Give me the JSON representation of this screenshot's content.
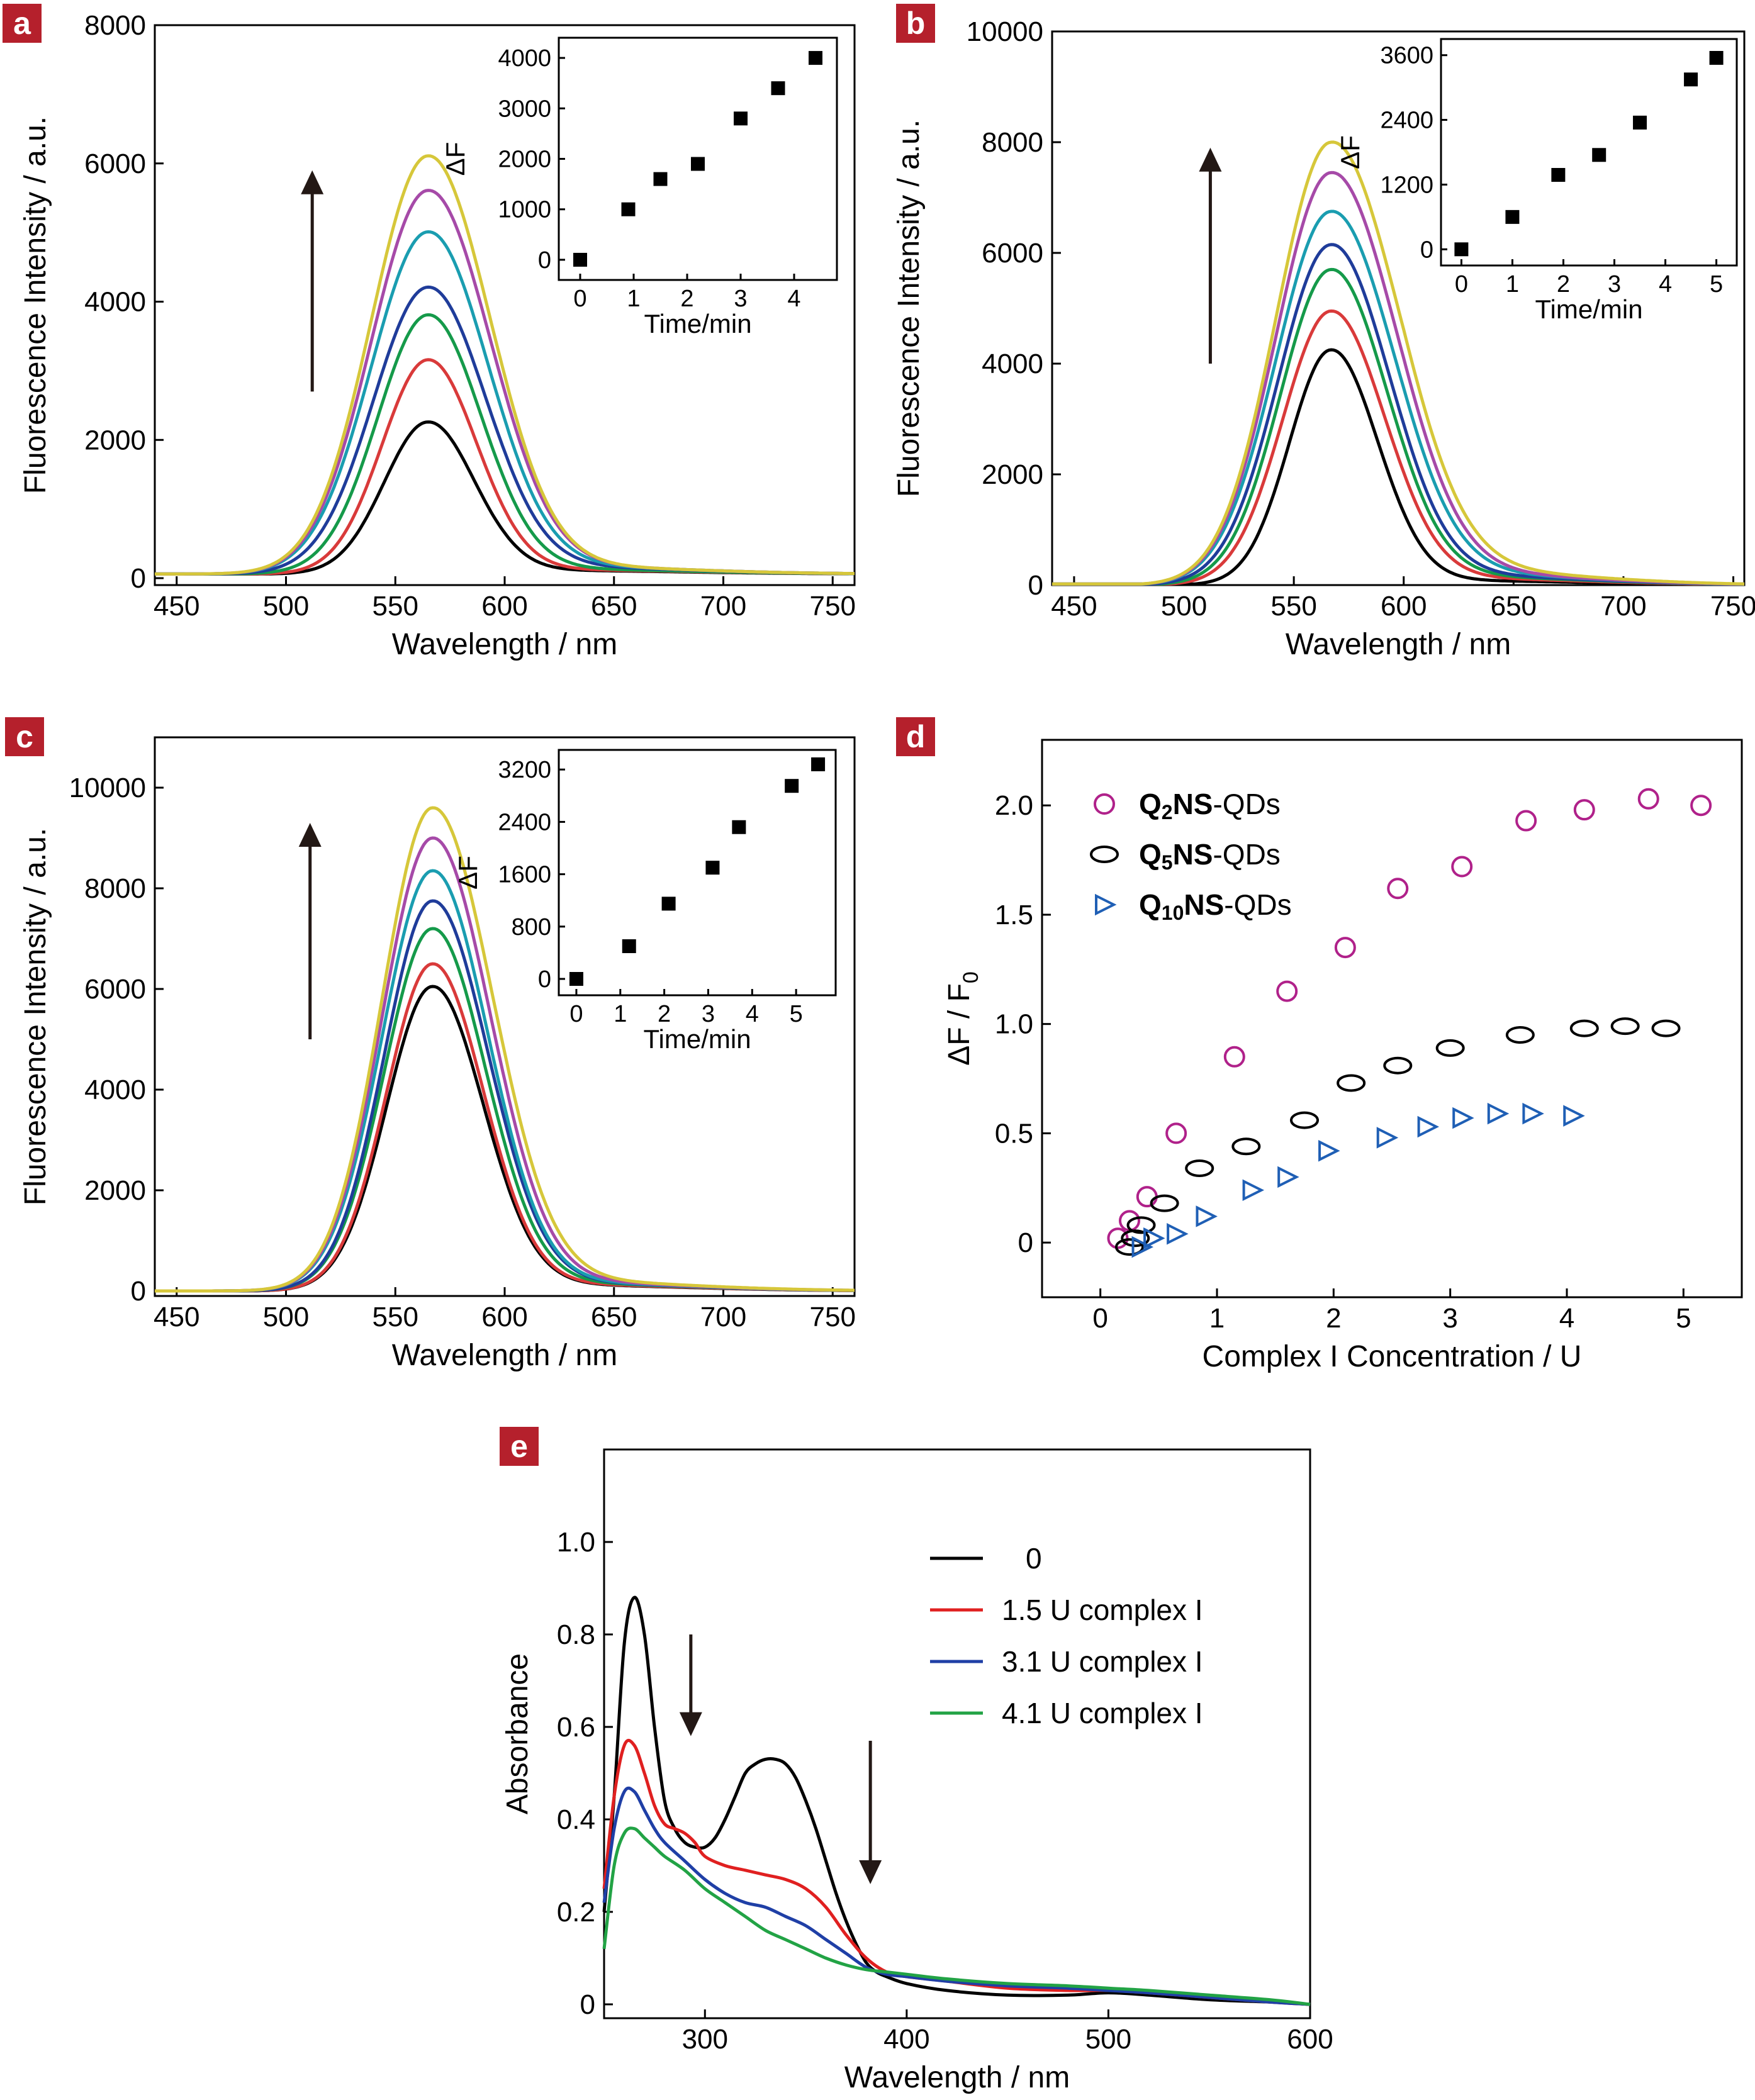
{
  "colors": {
    "spectra": [
      "#000000",
      "#d93a3a",
      "#159a4a",
      "#1f3c9a",
      "#1a9db0",
      "#a64aa8",
      "#d6c73a"
    ],
    "d_series": [
      "#b0218a",
      "#000000",
      "#1f5fb5"
    ],
    "e_series": [
      "#000000",
      "#e02020",
      "#1f3fa6",
      "#22a345"
    ],
    "badge": "#b5202c",
    "arrow": "#231815"
  },
  "chart_data": [
    {
      "id": "a",
      "label": "a",
      "type": "line",
      "xlabel": "Wavelength / nm",
      "ylabel": "Fluorescence Intensity / a.u.",
      "xlim": [
        440,
        760
      ],
      "ylim": [
        -100,
        8000
      ],
      "xticks": [
        450,
        500,
        550,
        600,
        650,
        700,
        750
      ],
      "xtick_labels": [
        "450",
        "500",
        "550",
        "600",
        "650",
        "700",
        "750"
      ],
      "yticks": [
        0,
        2000,
        4000,
        6000,
        8000
      ],
      "ytick_labels": [
        "0",
        "2000",
        "4000",
        "6000",
        "8000"
      ],
      "peak_x": 565,
      "series": [
        {
          "name": "t0",
          "peak": 2200,
          "onset": 505,
          "sigma_left": 20,
          "sigma_right": 21,
          "tail": 50
        },
        {
          "name": "t1",
          "peak": 3100,
          "onset": 495,
          "sigma_left": 21,
          "sigma_right": 22,
          "tail": 60
        },
        {
          "name": "t2",
          "peak": 3750,
          "onset": 485,
          "sigma_left": 23,
          "sigma_right": 24,
          "tail": 70
        },
        {
          "name": "t3",
          "peak": 4150,
          "onset": 470,
          "sigma_left": 25,
          "sigma_right": 26,
          "tail": 100
        },
        {
          "name": "t4",
          "peak": 4950,
          "onset": 460,
          "sigma_left": 26,
          "sigma_right": 27,
          "tail": 110
        },
        {
          "name": "t5",
          "peak": 5550,
          "onset": 455,
          "sigma_left": 26,
          "sigma_right": 28,
          "tail": 110
        },
        {
          "name": "t6",
          "peak": 6050,
          "onset": 455,
          "sigma_left": 26,
          "sigma_right": 28,
          "tail": 110
        }
      ],
      "arrow": {
        "x": 512,
        "y_from": 2700,
        "y_to": 5900
      },
      "inset": {
        "xlabel": "Time/min",
        "ylabel": "ΔF",
        "xlim": [
          -0.4,
          4.8
        ],
        "ylim": [
          -400,
          4400
        ],
        "xticks": [
          0,
          1,
          2,
          3,
          4
        ],
        "xtick_labels": [
          "0",
          "1",
          "2",
          "3",
          "4"
        ],
        "yticks": [
          0,
          1000,
          2000,
          3000,
          4000
        ],
        "ytick_labels": [
          "0",
          "1000",
          "2000",
          "3000",
          "4000"
        ],
        "x": [
          0,
          0.9,
          1.5,
          2.2,
          3.0,
          3.7,
          4.4
        ],
        "y": [
          0,
          1000,
          1600,
          1900,
          2800,
          3400,
          4000
        ]
      }
    },
    {
      "id": "b",
      "label": "b",
      "type": "line",
      "xlabel": "Wavelength / nm",
      "ylabel": "Fluorescence Intensity / a.u.",
      "xlim": [
        440,
        755
      ],
      "ylim": [
        0,
        10000
      ],
      "xticks": [
        450,
        500,
        550,
        600,
        650,
        700,
        750
      ],
      "xtick_labels": [
        "450",
        "500",
        "550",
        "600",
        "650",
        "700",
        "750"
      ],
      "yticks": [
        0,
        2000,
        4000,
        6000,
        8000,
        10000
      ],
      "ytick_labels": [
        "0",
        "2000",
        "4000",
        "6000",
        "8000",
        "10000"
      ],
      "peak_x": 567,
      "series": [
        {
          "name": "t0",
          "peak": 4250,
          "onset": 505,
          "sigma_left": 19,
          "sigma_right": 21,
          "tail": 80
        },
        {
          "name": "t1",
          "peak": 4950,
          "onset": 480,
          "sigma_left": 22,
          "sigma_right": 24,
          "tail": 120
        },
        {
          "name": "t2",
          "peak": 5700,
          "onset": 470,
          "sigma_left": 23,
          "sigma_right": 25,
          "tail": 150
        },
        {
          "name": "t3",
          "peak": 6150,
          "onset": 465,
          "sigma_left": 24,
          "sigma_right": 26,
          "tail": 170
        },
        {
          "name": "t4",
          "peak": 6750,
          "onset": 455,
          "sigma_left": 25,
          "sigma_right": 28,
          "tail": 200
        },
        {
          "name": "t5",
          "peak": 7450,
          "onset": 455,
          "sigma_left": 25,
          "sigma_right": 29,
          "tail": 210
        },
        {
          "name": "t6",
          "peak": 8000,
          "onset": 455,
          "sigma_left": 25,
          "sigma_right": 30,
          "tail": 260
        }
      ],
      "arrow": {
        "x": 512,
        "y_from": 4000,
        "y_to": 7900
      },
      "inset": {
        "xlabel": "Time/min",
        "ylabel": "ΔF",
        "xlim": [
          -0.4,
          5.4
        ],
        "ylim": [
          -300,
          3900
        ],
        "xticks": [
          0,
          1,
          2,
          3,
          4,
          5
        ],
        "xtick_labels": [
          "0",
          "1",
          "2",
          "3",
          "4",
          "5"
        ],
        "yticks": [
          0,
          1200,
          2400,
          3600
        ],
        "ytick_labels": [
          "0",
          "1200",
          "2400",
          "3600"
        ],
        "x": [
          0,
          1.0,
          1.9,
          2.7,
          3.5,
          4.5,
          5.0
        ],
        "y": [
          0,
          600,
          1380,
          1750,
          2350,
          3150,
          3550
        ]
      }
    },
    {
      "id": "c",
      "label": "c",
      "type": "line",
      "xlabel": "Wavelength / nm",
      "ylabel": "Fluorescence Intensity / a.u.",
      "xlim": [
        440,
        760
      ],
      "ylim": [
        -100,
        11000
      ],
      "xticks": [
        450,
        500,
        550,
        600,
        650,
        700,
        750
      ],
      "xtick_labels": [
        "450",
        "500",
        "550",
        "600",
        "650",
        "700",
        "750"
      ],
      "yticks": [
        0,
        2000,
        4000,
        6000,
        8000,
        10000
      ],
      "ytick_labels": [
        "0",
        "2000",
        "4000",
        "6000",
        "8000",
        "10000"
      ],
      "peak_x": 567,
      "series": [
        {
          "name": "t0",
          "peak": 6050,
          "onset": 470,
          "sigma_left": 21,
          "sigma_right": 23,
          "tail": 120
        },
        {
          "name": "t1",
          "peak": 6500,
          "onset": 470,
          "sigma_left": 21,
          "sigma_right": 23,
          "tail": 130
        },
        {
          "name": "t2",
          "peak": 7200,
          "onset": 470,
          "sigma_left": 22,
          "sigma_right": 24,
          "tail": 150
        },
        {
          "name": "t3",
          "peak": 7750,
          "onset": 470,
          "sigma_left": 22,
          "sigma_right": 25,
          "tail": 160
        },
        {
          "name": "t4",
          "peak": 8350,
          "onset": 470,
          "sigma_left": 23,
          "sigma_right": 25,
          "tail": 170
        },
        {
          "name": "t5",
          "peak": 9000,
          "onset": 470,
          "sigma_left": 23,
          "sigma_right": 26,
          "tail": 180
        },
        {
          "name": "t6",
          "peak": 9600,
          "onset": 470,
          "sigma_left": 23,
          "sigma_right": 27,
          "tail": 200
        }
      ],
      "arrow": {
        "x": 511,
        "y_from": 5000,
        "y_to": 9300
      },
      "inset": {
        "xlabel": "Time/min",
        "ylabel": "ΔF",
        "xlim": [
          -0.4,
          5.9
        ],
        "ylim": [
          -250,
          3500
        ],
        "xticks": [
          0,
          1,
          2,
          3,
          4,
          5
        ],
        "xtick_labels": [
          "0",
          "1",
          "2",
          "3",
          "4",
          "5"
        ],
        "yticks": [
          0,
          800,
          1600,
          2400,
          3200
        ],
        "ytick_labels": [
          "0",
          "800",
          "1600",
          "2400",
          "3200"
        ],
        "x": [
          0,
          1.2,
          2.1,
          3.1,
          3.7,
          4.9,
          5.5
        ],
        "y": [
          0,
          500,
          1150,
          1700,
          2320,
          2950,
          3280
        ]
      }
    },
    {
      "id": "d",
      "label": "d",
      "type": "scatter",
      "xlabel": "Complex I Concentration / U",
      "ylabel": "ΔF / F0",
      "ylabel_main": "ΔF / F",
      "ylabel_sub": "0",
      "xlim": [
        -0.5,
        5.5
      ],
      "ylim": [
        -0.25,
        2.3
      ],
      "xticks": [
        0,
        1,
        2,
        3,
        4,
        5
      ],
      "xtick_labels": [
        "0",
        "1",
        "2",
        "3",
        "4",
        "5"
      ],
      "yticks": [
        0,
        0.5,
        1.0,
        1.5,
        2.0
      ],
      "ytick_labels": [
        "0",
        "0.5",
        "1.0",
        "1.5",
        "2.0"
      ],
      "series": [
        {
          "name": "Q2NS-QDs",
          "legend_q": "Q",
          "legend_sub": "2",
          "legend_ns": "NS",
          "legend_rest": "-QDs",
          "marker": "circle",
          "x": [
            0.15,
            0.25,
            0.4,
            0.65,
            1.15,
            1.6,
            2.1,
            2.55,
            3.1,
            3.65,
            4.15,
            4.7,
            5.15
          ],
          "y": [
            0.02,
            0.1,
            0.21,
            0.5,
            0.85,
            1.15,
            1.35,
            1.62,
            1.72,
            1.93,
            1.98,
            2.03,
            2.0
          ]
        },
        {
          "name": "Q5NS-QDs",
          "legend_q": "Q",
          "legend_sub": "5",
          "legend_ns": "NS",
          "legend_rest": "-QDs",
          "marker": "ellipse",
          "x": [
            0.25,
            0.3,
            0.35,
            0.55,
            0.85,
            1.25,
            1.75,
            2.15,
            2.55,
            3.0,
            3.6,
            4.15,
            4.5,
            4.85
          ],
          "y": [
            -0.02,
            0.02,
            0.08,
            0.18,
            0.34,
            0.44,
            0.56,
            0.73,
            0.81,
            0.89,
            0.95,
            0.98,
            0.99,
            0.98
          ]
        },
        {
          "name": "Q10NS-QDs",
          "legend_q": "Q",
          "legend_sub": "10",
          "legend_ns": "NS",
          "legend_rest": "-QDs",
          "marker": "triangle",
          "x": [
            0.35,
            0.45,
            0.65,
            0.9,
            1.3,
            1.6,
            1.95,
            2.45,
            2.8,
            3.1,
            3.4,
            3.7,
            4.05
          ],
          "y": [
            -0.02,
            0.02,
            0.04,
            0.12,
            0.24,
            0.3,
            0.42,
            0.48,
            0.53,
            0.57,
            0.59,
            0.59,
            0.58
          ]
        }
      ],
      "legend_position": "top-left"
    },
    {
      "id": "e",
      "label": "e",
      "type": "line",
      "xlabel": "Wavelength / nm",
      "ylabel": "Absorbance",
      "xlim": [
        250,
        600
      ],
      "ylim": [
        -0.03,
        1.2
      ],
      "xticks": [
        300,
        400,
        500,
        600
      ],
      "xtick_labels": [
        "300",
        "400",
        "500",
        "600"
      ],
      "yticks": [
        0,
        0.2,
        0.4,
        0.6,
        0.8,
        1.0
      ],
      "ytick_labels": [
        "0",
        "0.2",
        "0.4",
        "0.6",
        "0.8",
        "1.0"
      ],
      "series": [
        {
          "name": "0",
          "x": [
            250,
            255,
            260,
            265,
            270,
            275,
            280,
            285,
            290,
            295,
            300,
            305,
            310,
            315,
            320,
            325,
            330,
            335,
            340,
            345,
            350,
            355,
            360,
            365,
            370,
            375,
            380,
            385,
            390,
            400,
            420,
            450,
            480,
            500,
            520,
            550,
            580,
            600
          ],
          "y": [
            0.2,
            0.45,
            0.78,
            0.88,
            0.8,
            0.6,
            0.44,
            0.38,
            0.35,
            0.34,
            0.34,
            0.36,
            0.4,
            0.45,
            0.5,
            0.52,
            0.53,
            0.53,
            0.52,
            0.49,
            0.44,
            0.38,
            0.31,
            0.24,
            0.18,
            0.13,
            0.09,
            0.07,
            0.06,
            0.045,
            0.03,
            0.02,
            0.02,
            0.025,
            0.02,
            0.01,
            0.005,
            0.0
          ]
        },
        {
          "name": "1.5 U complex I",
          "x": [
            250,
            255,
            260,
            265,
            270,
            275,
            280,
            285,
            290,
            295,
            300,
            310,
            320,
            330,
            340,
            350,
            360,
            370,
            380,
            390,
            400,
            420,
            450,
            480,
            500,
            520,
            550,
            580,
            600
          ],
          "y": [
            0.25,
            0.45,
            0.56,
            0.56,
            0.5,
            0.43,
            0.39,
            0.38,
            0.37,
            0.35,
            0.32,
            0.3,
            0.29,
            0.28,
            0.27,
            0.25,
            0.21,
            0.15,
            0.1,
            0.07,
            0.06,
            0.05,
            0.035,
            0.03,
            0.03,
            0.025,
            0.015,
            0.005,
            0.0
          ]
        },
        {
          "name": "3.1 U complex I",
          "x": [
            250,
            255,
            260,
            265,
            270,
            275,
            280,
            290,
            300,
            310,
            320,
            330,
            340,
            350,
            360,
            370,
            380,
            390,
            400,
            420,
            450,
            480,
            500,
            520,
            550,
            580,
            600
          ],
          "y": [
            0.22,
            0.38,
            0.46,
            0.46,
            0.42,
            0.38,
            0.35,
            0.31,
            0.27,
            0.24,
            0.22,
            0.21,
            0.19,
            0.17,
            0.14,
            0.11,
            0.08,
            0.065,
            0.06,
            0.05,
            0.04,
            0.035,
            0.03,
            0.025,
            0.015,
            0.005,
            0.0
          ]
        },
        {
          "name": "4.1 U complex I",
          "x": [
            250,
            255,
            260,
            265,
            270,
            275,
            280,
            290,
            300,
            310,
            320,
            330,
            340,
            350,
            360,
            370,
            380,
            390,
            400,
            420,
            450,
            480,
            500,
            520,
            550,
            580,
            600
          ],
          "y": [
            0.12,
            0.3,
            0.37,
            0.38,
            0.36,
            0.34,
            0.32,
            0.29,
            0.25,
            0.22,
            0.19,
            0.16,
            0.14,
            0.12,
            0.1,
            0.085,
            0.075,
            0.07,
            0.065,
            0.055,
            0.045,
            0.04,
            0.035,
            0.03,
            0.02,
            0.01,
            0.0
          ]
        }
      ],
      "arrows": [
        {
          "x": 293,
          "y_from": 0.8,
          "y_to": 0.58
        },
        {
          "x": 382,
          "y_from": 0.57,
          "y_to": 0.26
        }
      ],
      "legend_position": "top-right"
    }
  ]
}
